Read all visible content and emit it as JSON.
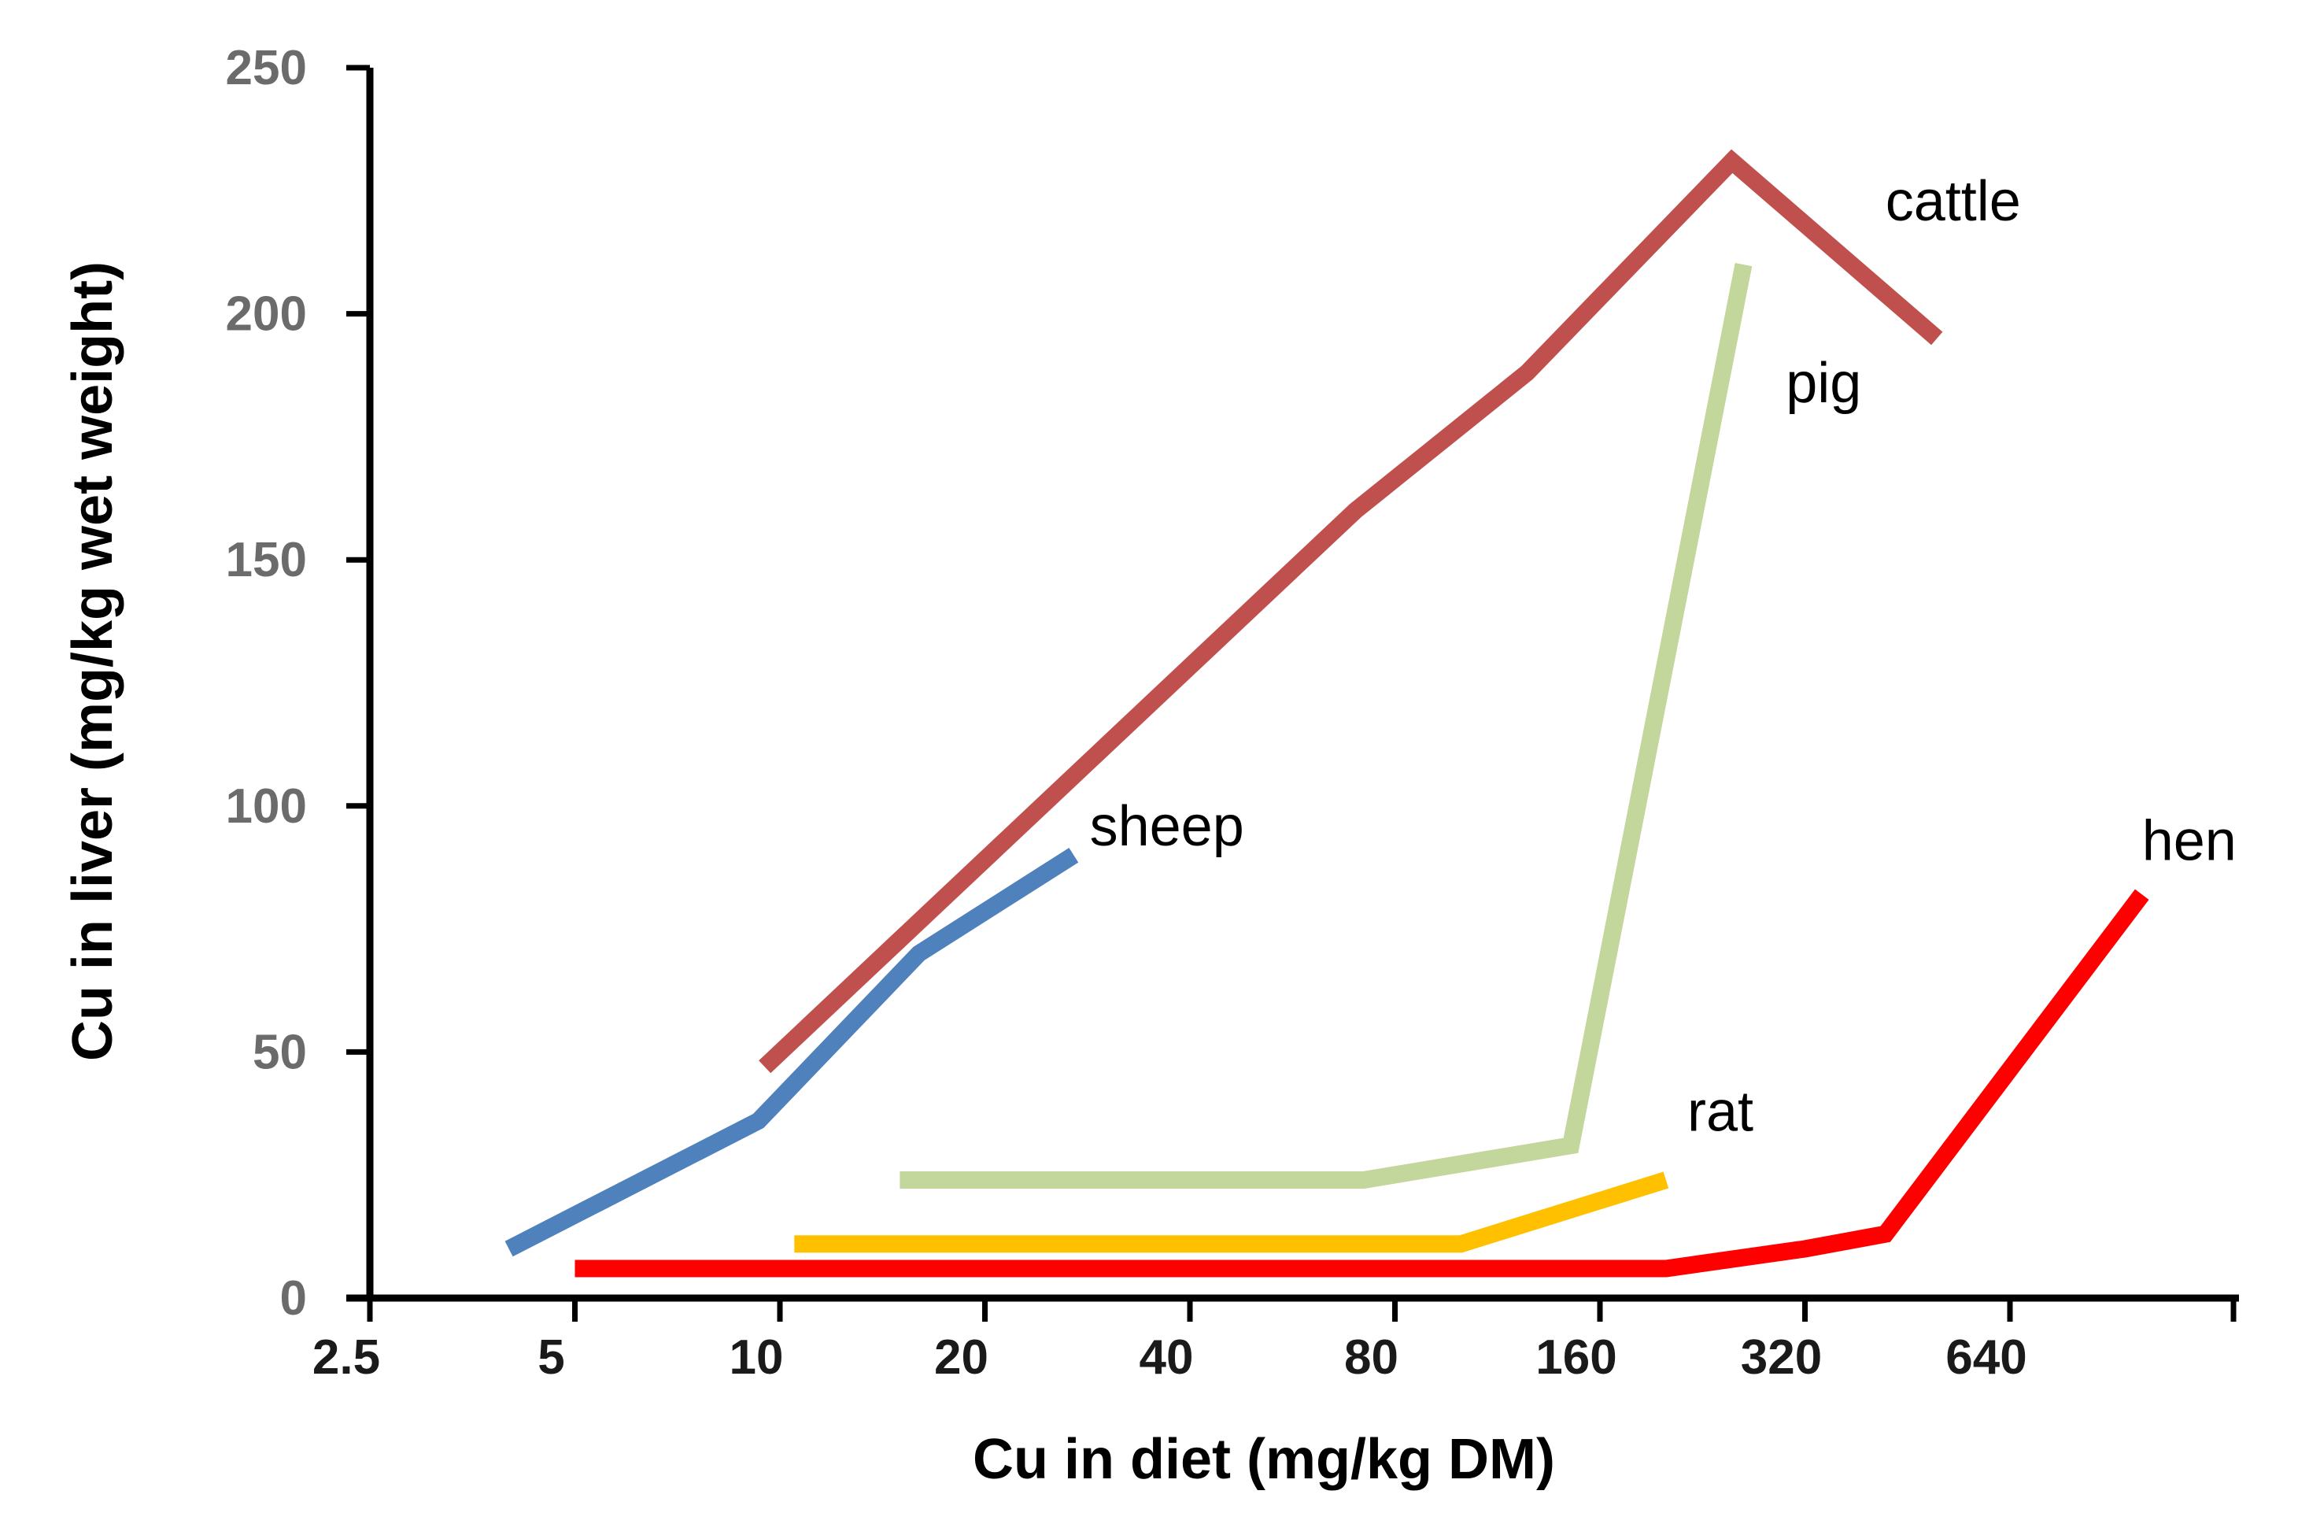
{
  "chart_data": {
    "type": "line",
    "title": "",
    "xlabel": "Cu in diet (mg/kg DM)",
    "ylabel": "Cu in liver (mg/kg wet weight)",
    "x_scale": "log2",
    "xlim": [
      2.5,
      1600
    ],
    "ylim": [
      0,
      250
    ],
    "grid": false,
    "x_ticks": [
      {
        "value": 2.5,
        "label": "2.5"
      },
      {
        "value": 5,
        "label": "5"
      },
      {
        "value": 10,
        "label": "10"
      },
      {
        "value": 20,
        "label": "20"
      },
      {
        "value": 40,
        "label": "40"
      },
      {
        "value": 80,
        "label": "80"
      },
      {
        "value": 160,
        "label": "160"
      },
      {
        "value": 320,
        "label": "320"
      },
      {
        "value": 640,
        "label": "640"
      }
    ],
    "y_ticks": [
      {
        "value": 0,
        "label": "0"
      },
      {
        "value": 50,
        "label": "50"
      },
      {
        "value": 100,
        "label": "100"
      },
      {
        "value": 150,
        "label": "150"
      },
      {
        "value": 200,
        "label": "200"
      },
      {
        "value": 250,
        "label": "250"
      }
    ],
    "series": [
      {
        "name": "cattle",
        "label": "cattle",
        "color": "#c0504d",
        "label_anchor": [
          420,
          219
        ],
        "points": [
          [
            9.5,
            47
          ],
          [
            70,
            160
          ],
          [
            125,
            188
          ],
          [
            250,
            231
          ],
          [
            500,
            195
          ]
        ]
      },
      {
        "name": "pig",
        "label": "pig",
        "color": "#c3d69b",
        "label_anchor": [
          300,
          182
        ],
        "points": [
          [
            15,
            24
          ],
          [
            72,
            24
          ],
          [
            145,
            31
          ],
          [
            260,
            210
          ]
        ]
      },
      {
        "name": "sheep",
        "label": "sheep",
        "color": "#4f81bd",
        "label_anchor": [
          28.5,
          92
        ],
        "points": [
          [
            4,
            10
          ],
          [
            9.3,
            36
          ],
          [
            16,
            70
          ],
          [
            27,
            90
          ]
        ]
      },
      {
        "name": "rat",
        "label": "rat",
        "color": "#ffc000",
        "label_anchor": [
          215,
          34
        ],
        "points": [
          [
            10.5,
            11
          ],
          [
            100,
            11
          ],
          [
            200,
            24
          ]
        ]
      },
      {
        "name": "hen",
        "label": "hen",
        "color": "#ff0000",
        "label_anchor": [
          1000,
          89
        ],
        "points": [
          [
            5,
            6
          ],
          [
            200,
            6
          ],
          [
            320,
            10
          ],
          [
            420,
            13
          ],
          [
            1000,
            82
          ]
        ]
      }
    ]
  }
}
